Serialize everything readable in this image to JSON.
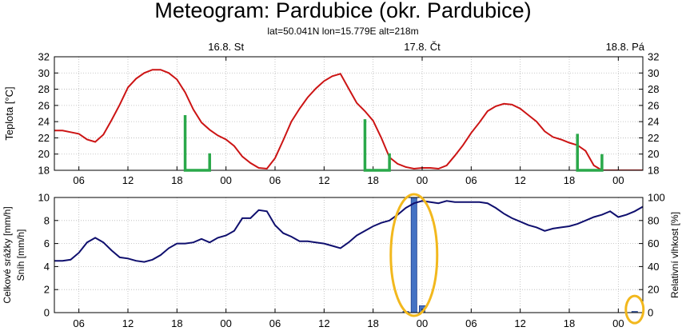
{
  "title": "Meteogram: Pardubice (okr. Pardubice)",
  "subtitle": "lat=50.041N lon=15.779E alt=218m",
  "colors": {
    "temperature": "#cc1414",
    "humidity": "#0f0f6e",
    "precipitation": "#4472c4",
    "green_marker": "#2aa84a",
    "highlight_ellipse": "#f2b81d"
  },
  "chart_data": [
    {
      "type": "line",
      "name": "temperature-panel",
      "ylabel": "Teplota [°C]",
      "ylim": [
        18,
        32
      ],
      "yticks": [
        18,
        20,
        22,
        24,
        26,
        28,
        30,
        32
      ],
      "xlim": [
        0,
        72
      ],
      "xticks": [
        {
          "x": 3,
          "label": "06"
        },
        {
          "x": 9,
          "label": "12"
        },
        {
          "x": 15,
          "label": "18"
        },
        {
          "x": 21,
          "label": "00"
        },
        {
          "x": 27,
          "label": "06"
        },
        {
          "x": 33,
          "label": "12"
        },
        {
          "x": 39,
          "label": "18"
        },
        {
          "x": 45,
          "label": "00"
        },
        {
          "x": 51,
          "label": "06"
        },
        {
          "x": 57,
          "label": "12"
        },
        {
          "x": 63,
          "label": "18"
        },
        {
          "x": 69,
          "label": "00"
        }
      ],
      "date_labels": [
        {
          "x": 21,
          "label": "16.8. St"
        },
        {
          "x": 45,
          "label": "17.8. Čt"
        },
        {
          "x": 69,
          "label": "18.8. Pá"
        }
      ],
      "series": [
        {
          "x": [
            0,
            1,
            2,
            3,
            4,
            5,
            6,
            7,
            8,
            9,
            10,
            11,
            12,
            13,
            14,
            15,
            16,
            17,
            18,
            19,
            20,
            21,
            22,
            23,
            24,
            25,
            26,
            27,
            28,
            29,
            30,
            31,
            32,
            33,
            34,
            35,
            36,
            37,
            38,
            39,
            40,
            41,
            42,
            43,
            44,
            45,
            46,
            47,
            48,
            49,
            50,
            51,
            52,
            53,
            54,
            55,
            56,
            57,
            58,
            59,
            60,
            61,
            62,
            63,
            64,
            65,
            66,
            67,
            68,
            69,
            70,
            71,
            72
          ],
          "values": [
            22.9,
            22.9,
            22.7,
            22.5,
            21.8,
            21.5,
            22.4,
            24.2,
            26.1,
            28.2,
            29.3,
            30.0,
            30.4,
            30.4,
            30.0,
            29.2,
            27.6,
            25.5,
            23.9,
            23.0,
            22.3,
            21.8,
            21.0,
            19.7,
            18.9,
            18.3,
            18.2,
            19.5,
            21.7,
            24.0,
            25.6,
            27.0,
            28.1,
            29.0,
            29.6,
            29.9,
            28.1,
            26.3,
            25.3,
            24.1,
            22.0,
            19.6,
            18.8,
            18.4,
            18.2,
            18.3,
            18.3,
            18.2,
            18.6,
            19.8,
            21.1,
            22.6,
            23.9,
            25.3,
            25.9,
            26.2,
            26.1,
            25.6,
            24.8,
            24.0,
            22.8,
            22.1,
            21.8,
            21.4,
            21.1,
            20.4,
            18.6,
            18.0,
            17.8,
            17.8,
            17.8,
            17.8,
            17.8
          ]
        }
      ],
      "annotations": [
        {
          "type": "bracket",
          "x_start": 16,
          "x_end": 19,
          "y_top": 24.8,
          "y_end": 20.1
        },
        {
          "type": "bracket",
          "x_start": 38,
          "x_end": 41,
          "y_top": 24.3,
          "y_end": 20.1
        },
        {
          "type": "bracket",
          "x_start": 64,
          "x_end": 67,
          "y_top": 22.5,
          "y_end": 20.0
        }
      ]
    },
    {
      "type": "bar",
      "name": "precipitation-humidity-panel",
      "ylabel": "Celkové srážky [mm/h]",
      "ylabel2": "Sníh [mm/h]",
      "y2label": "Relativní vlhkost [%]",
      "ylim": [
        0,
        10
      ],
      "yticks": [
        0,
        2,
        4,
        6,
        8,
        10
      ],
      "y2lim": [
        0,
        100
      ],
      "y2ticks": [
        0,
        20,
        40,
        60,
        80,
        100
      ],
      "xlim": [
        0,
        72
      ],
      "xticks": [
        {
          "x": 3,
          "label": "06"
        },
        {
          "x": 9,
          "label": "12"
        },
        {
          "x": 15,
          "label": "18"
        },
        {
          "x": 21,
          "label": "00"
        },
        {
          "x": 27,
          "label": "06"
        },
        {
          "x": 33,
          "label": "12"
        },
        {
          "x": 39,
          "label": "18"
        },
        {
          "x": 45,
          "label": "00"
        },
        {
          "x": 51,
          "label": "06"
        },
        {
          "x": 57,
          "label": "12"
        },
        {
          "x": 63,
          "label": "18"
        },
        {
          "x": 69,
          "label": "00"
        }
      ],
      "bars": [
        {
          "x": 43,
          "value": 0.1
        },
        {
          "x": 44,
          "value": 10.0
        },
        {
          "x": 45,
          "value": 0.6
        },
        {
          "x": 71,
          "value": 0.1
        }
      ],
      "humidity": {
        "x": [
          0,
          1,
          2,
          3,
          4,
          5,
          6,
          7,
          8,
          9,
          10,
          11,
          12,
          13,
          14,
          15,
          16,
          17,
          18,
          19,
          20,
          21,
          22,
          23,
          24,
          25,
          26,
          27,
          28,
          29,
          30,
          31,
          32,
          33,
          34,
          35,
          36,
          37,
          38,
          39,
          40,
          41,
          42,
          43,
          44,
          45,
          46,
          47,
          48,
          49,
          50,
          51,
          52,
          53,
          54,
          55,
          56,
          57,
          58,
          59,
          60,
          61,
          62,
          63,
          64,
          65,
          66,
          67,
          68,
          69,
          70,
          71,
          72
        ],
        "values": [
          45,
          45,
          46,
          52,
          61,
          65,
          61,
          54,
          48,
          47,
          45,
          44,
          46,
          50,
          56,
          60,
          60,
          61,
          64,
          61,
          65,
          67,
          71,
          82,
          82,
          89,
          88,
          76,
          69,
          66,
          62,
          62,
          61,
          60,
          58,
          56,
          61,
          67,
          71,
          75,
          78,
          80,
          85,
          91,
          95,
          97,
          96,
          95,
          97,
          96,
          96,
          96,
          96,
          95,
          91,
          86,
          82,
          79,
          76,
          74,
          71,
          73,
          74,
          75,
          77,
          80,
          83,
          85,
          88,
          83,
          85,
          88,
          92
        ]
      },
      "annotations": [
        {
          "type": "ellipse",
          "x_center": 44,
          "y_center": 5.0
        },
        {
          "type": "ellipse",
          "x_center": 71,
          "y_center": 0.2
        }
      ]
    }
  ]
}
